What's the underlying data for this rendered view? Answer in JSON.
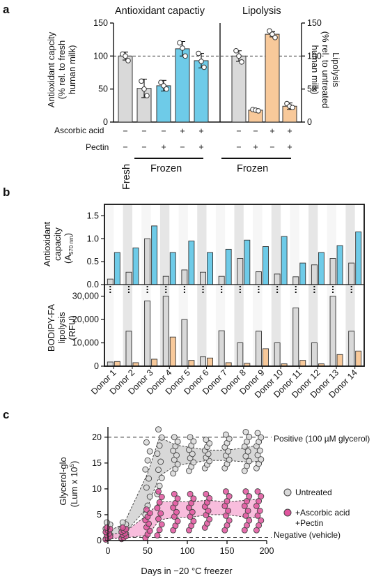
{
  "colors": {
    "gray_bar": "#d9d9d9",
    "blue": "#6ecbe8",
    "orange": "#f8c99a",
    "pink": "#e0559e",
    "pink_band": "#f7b6d9",
    "gray_band": "#d4d4d4",
    "shade": "#e6e6e6"
  },
  "panel_a": {
    "label": "a",
    "title_left": "Antioxidant capactiy",
    "title_right": "Lipolysis",
    "ylabel_left": "Antioxidant capcity\n(% rel. to fresh\nhuman milk)",
    "ylabel_right": "Lipolysis\n(% rel. to untreated\nhuman milk)",
    "yticks": [
      "0",
      "50",
      "100",
      "150"
    ],
    "row_labels": [
      "Ascorbic acid",
      "Pectin"
    ],
    "fresh_label": "Fresh",
    "frozen_label": "Frozen",
    "left_signs": [
      [
        "−",
        "−"
      ],
      [
        "−",
        "−"
      ],
      [
        "−",
        "+"
      ],
      [
        "+",
        "−"
      ],
      [
        "+",
        "+"
      ]
    ],
    "right_signs": [
      [
        "−",
        "−"
      ],
      [
        "−",
        "+"
      ],
      [
        "+",
        "−"
      ],
      [
        "+",
        "+"
      ]
    ]
  },
  "panel_b": {
    "label": "b",
    "ylabel_top": [
      "Antioxidant",
      "capacity",
      "(A",
      "570 nm",
      ")"
    ],
    "ylabel_bottom": [
      "BODIPY-FA",
      "lipolysis",
      "(RFU)"
    ],
    "yticks_top": [
      "0.0",
      "0.5",
      "1.0",
      "1.5"
    ],
    "yticks_bottom": [
      "0",
      "10,000",
      "20,000",
      "30,000"
    ],
    "donors": [
      "Donor 1",
      "Donor 2",
      "Donor 3",
      "Donor 4",
      "Donor 5",
      "Donor 6",
      "Donor 7",
      "Donor 8",
      "Donor 9",
      "Donor 10",
      "Donor 11",
      "Donor 12",
      "Donor 13",
      "Donor 14"
    ]
  },
  "panel_c": {
    "label": "c",
    "ylabel": [
      "Glycerol-glo",
      "(Lum x 10",
      "5",
      ")"
    ],
    "xlabel": "Days in −20 °C freezer",
    "xticks": [
      "0",
      "50",
      "100",
      "150",
      "200"
    ],
    "yticks": [
      "0",
      "5",
      "10",
      "15",
      "20"
    ],
    "positive_label": "Positive (100 µM glycerol)",
    "negative_label": "Negative (vehicle)",
    "legend_untreated": "Untreated",
    "legend_treated_1": "+Ascorbic acid",
    "legend_treated_2": "+Pectin"
  },
  "chart_data": [
    {
      "type": "bar",
      "title": "Antioxidant capactiy",
      "ylabel": "Antioxidant capcity (% rel. to fresh human milk)",
      "ylim": [
        0,
        150
      ],
      "categories": [
        "Fresh",
        "Frozen",
        "Frozen +Pectin",
        "Frozen +Ascorbic acid",
        "Frozen +Ascorbic acid +Pectin"
      ],
      "values": [
        100,
        51,
        55,
        111,
        93
      ],
      "errors": [
        6,
        14,
        8,
        11,
        11
      ],
      "points": [
        [
          103,
          100,
          93
        ],
        [
          62,
          50,
          40
        ],
        [
          60,
          55,
          50
        ],
        [
          120,
          112,
          100
        ],
        [
          104,
          92,
          83
        ]
      ],
      "reference_line": 100
    },
    {
      "type": "bar",
      "title": "Lipolysis",
      "ylabel": "Lipolysis (% rel. to untreated human milk)",
      "ylim": [
        0,
        150
      ],
      "categories": [
        "Frozen",
        "Frozen +Pectin",
        "Frozen +Ascorbic acid",
        "Frozen +Ascorbic acid +Pectin"
      ],
      "values": [
        100,
        18,
        133,
        24
      ],
      "errors": [
        8,
        1,
        4,
        5
      ],
      "points": [
        [
          108,
          100,
          91
        ],
        [
          19,
          18,
          17
        ],
        [
          138,
          133,
          128
        ],
        [
          28,
          24,
          22
        ]
      ],
      "reference_line": 100
    },
    {
      "type": "bar",
      "ylabel": "Antioxidant capacity (A570 nm)",
      "ylim": [
        0,
        1.75
      ],
      "categories": [
        "Donor 1",
        "Donor 2",
        "Donor 3",
        "Donor 4",
        "Donor 5",
        "Donor 6",
        "Donor 7",
        "Donor 8",
        "Donor 9",
        "Donor 10",
        "Donor 11",
        "Donor 12",
        "Donor 13",
        "Donor 14"
      ],
      "series": [
        {
          "values": [
            0.12,
            0.27,
            1.0,
            0.18,
            0.32,
            0.27,
            0.18,
            0.57,
            0.28,
            0.23,
            0.17,
            0.43,
            0.57,
            0.47
          ]
        },
        {
          "values": [
            0.7,
            0.8,
            1.28,
            0.7,
            0.95,
            0.7,
            0.77,
            0.97,
            0.83,
            1.05,
            0.47,
            0.7,
            0.85,
            1.15
          ]
        }
      ]
    },
    {
      "type": "bar",
      "ylabel": "BODIPY-FA lipolysis (RFU)",
      "ylim": [
        0,
        35000
      ],
      "categories": [
        "Donor 1",
        "Donor 2",
        "Donor 3",
        "Donor 4",
        "Donor 5",
        "Donor 6",
        "Donor 7",
        "Donor 8",
        "Donor 9",
        "Donor 10",
        "Donor 11",
        "Donor 12",
        "Donor 13",
        "Donor 14"
      ],
      "series": [
        {
          "values": [
            1800,
            15000,
            28000,
            30000,
            20000,
            4000,
            15200,
            10000,
            15000,
            10000,
            25000,
            10000,
            30000,
            15000
          ]
        },
        {
          "values": [
            2000,
            1500,
            3000,
            12500,
            2500,
            3500,
            1500,
            1200,
            7500,
            1000,
            2500,
            1000,
            5000,
            6500
          ]
        }
      ]
    },
    {
      "type": "scatter",
      "xlabel": "Days in −20 °C freezer",
      "ylabel": "Glycerol-glo (Lum x 10^5)",
      "xlim": [
        0,
        200
      ],
      "ylim": [
        0,
        22
      ],
      "reference_lines": [
        {
          "y": 20,
          "label": "Positive (100 µM glycerol)"
        },
        {
          "y": 0.6,
          "label": "Negative (vehicle)"
        }
      ],
      "series": [
        {
          "name": "Untreated",
          "days": [
            0,
            20,
            50,
            65,
            85,
            105,
            125,
            150,
            175,
            190
          ],
          "low": [
            0.5,
            1.2,
            6.5,
            12.5,
            14.5,
            15,
            15.5,
            15.5,
            15.2,
            15.3
          ],
          "high": [
            1.8,
            3.2,
            13,
            20,
            18.5,
            18,
            17.5,
            17.5,
            18,
            18.5
          ],
          "min": [
            0.3,
            0.5,
            5,
            9,
            13,
            13.5,
            14,
            14,
            13.5,
            14
          ],
          "max": [
            3.5,
            3.5,
            19,
            21.5,
            20,
            20,
            19.5,
            20.5,
            21,
            20.8
          ]
        },
        {
          "name": "+Ascorbic acid +Pectin",
          "days": [
            0,
            20,
            50,
            65,
            85,
            105,
            125,
            150,
            175,
            190
          ],
          "low": [
            0.3,
            0.5,
            1,
            4,
            4.5,
            4.5,
            5,
            5,
            4.5,
            4.5
          ],
          "high": [
            1.2,
            1.5,
            5,
            7.5,
            7.5,
            7.5,
            7.8,
            7.5,
            7.8,
            8
          ],
          "min": [
            0.2,
            0.3,
            0.5,
            1,
            2,
            2,
            2.5,
            2,
            2,
            2
          ],
          "max": [
            2.5,
            2.5,
            6,
            9.5,
            9,
            9,
            9,
            9.5,
            9.5,
            9.5
          ]
        }
      ]
    }
  ]
}
